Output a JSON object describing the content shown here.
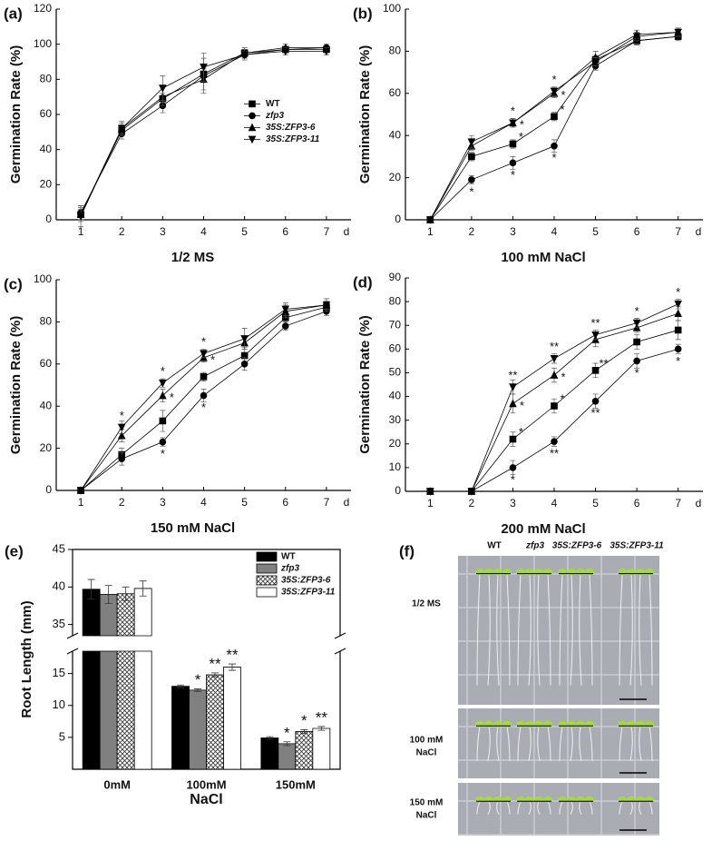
{
  "chart_data": [
    {
      "type": "line",
      "panel": "(a)",
      "title": "1/2 MS",
      "xlabel": "d",
      "ylabel": "Germination Rate (%)",
      "x": [
        1,
        2,
        3,
        4,
        5,
        6,
        7
      ],
      "xlim": [
        0.4,
        7.6
      ],
      "xticks": [
        1,
        2,
        3,
        4,
        5,
        6,
        7
      ],
      "ylim": [
        0,
        120
      ],
      "yticks": [
        0,
        20,
        40,
        60,
        80,
        100,
        120
      ],
      "legend": "center right",
      "series": [
        {
          "name": "WT",
          "marker": "square",
          "color": "#000000",
          "italic": false,
          "values": [
            3,
            51,
            69,
            83,
            95,
            97,
            97
          ],
          "errors": [
            3,
            3,
            3,
            4,
            2,
            1,
            1
          ]
        },
        {
          "name": "zfp3",
          "marker": "circle",
          "color": "#000000",
          "italic": true,
          "values": [
            4,
            49,
            65,
            82,
            94,
            97,
            98
          ],
          "errors": [
            4,
            3,
            4,
            10,
            2,
            1,
            1
          ]
        },
        {
          "name": "35S:ZFP3-6",
          "marker": "triangle-up",
          "color": "#000000",
          "italic": true,
          "values": [
            3,
            52,
            70,
            80,
            95,
            98,
            98
          ],
          "errors": [
            4,
            3,
            5,
            6,
            3,
            2,
            2
          ]
        },
        {
          "name": "35S:ZFP3-11",
          "marker": "triangle-down",
          "color": "#000000",
          "italic": true,
          "values": [
            2,
            52,
            75,
            87,
            94,
            96,
            96
          ],
          "errors": [
            6,
            4,
            7,
            8,
            3,
            2,
            2
          ]
        }
      ]
    },
    {
      "type": "line",
      "panel": "(b)",
      "title": "100 mM NaCl",
      "xlabel": "d",
      "ylabel": "Germination Rate (%)",
      "x": [
        1,
        2,
        3,
        4,
        5,
        6,
        7
      ],
      "xlim": [
        0.4,
        7.6
      ],
      "xticks": [
        1,
        2,
        3,
        4,
        5,
        6,
        7
      ],
      "ylim": [
        0,
        100
      ],
      "yticks": [
        0,
        20,
        40,
        60,
        80,
        100
      ],
      "series": [
        {
          "name": "WT",
          "marker": "square",
          "color": "#000000",
          "values": [
            0,
            30,
            36,
            49,
            76,
            85,
            87
          ],
          "errors": [
            0,
            2,
            2,
            2,
            2,
            2,
            2
          ],
          "annotations": [
            null,
            null,
            "*",
            "*",
            null,
            null,
            null
          ]
        },
        {
          "name": "zfp3",
          "marker": "circle",
          "color": "#000000",
          "values": [
            0,
            19,
            27,
            35,
            73,
            85,
            87
          ],
          "errors": [
            0,
            2,
            3,
            3,
            2,
            2,
            1
          ],
          "annotations": [
            null,
            "*",
            "*",
            "*",
            null,
            null,
            null
          ]
        },
        {
          "name": "35S:ZFP3-6",
          "marker": "triangle-up",
          "color": "#000000",
          "values": [
            0,
            35,
            46,
            60,
            77,
            88,
            89
          ],
          "errors": [
            0,
            2,
            2,
            2,
            3,
            2,
            2
          ],
          "annotations": [
            null,
            null,
            "*",
            "*",
            null,
            null,
            null
          ]
        },
        {
          "name": "35S:ZFP3-11",
          "marker": "triangle-down",
          "color": "#000000",
          "values": [
            0,
            37,
            46,
            61,
            75,
            87,
            89
          ],
          "errors": [
            0,
            3,
            2,
            2,
            2,
            2,
            2
          ],
          "annotations": [
            null,
            null,
            "*",
            "*",
            null,
            null,
            null
          ]
        }
      ]
    },
    {
      "type": "line",
      "panel": "(c)",
      "title": "150 mM NaCl",
      "xlabel": "d",
      "ylabel": "Germination Rate (%)",
      "x": [
        1,
        2,
        3,
        4,
        5,
        6,
        7
      ],
      "xlim": [
        0.4,
        7.6
      ],
      "xticks": [
        1,
        2,
        3,
        4,
        5,
        6,
        7
      ],
      "ylim": [
        0,
        100
      ],
      "yticks": [
        0,
        20,
        40,
        60,
        80,
        100
      ],
      "series": [
        {
          "name": "WT",
          "marker": "square",
          "color": "#000000",
          "values": [
            0,
            17,
            33,
            54,
            64,
            82,
            87
          ],
          "errors": [
            0,
            3,
            5,
            2,
            4,
            3,
            2
          ]
        },
        {
          "name": "zfp3",
          "marker": "circle",
          "color": "#000000",
          "values": [
            0,
            15,
            23,
            45,
            60,
            78,
            85
          ],
          "errors": [
            0,
            3,
            2,
            3,
            3,
            2,
            2
          ],
          "annotations": [
            null,
            null,
            "*",
            "*",
            null,
            null,
            null
          ]
        },
        {
          "name": "35S:ZFP3-6",
          "marker": "triangle-up",
          "color": "#000000",
          "values": [
            0,
            26,
            45,
            63,
            70,
            85,
            88
          ],
          "errors": [
            0,
            3,
            3,
            2,
            3,
            3,
            2
          ],
          "annotations": [
            null,
            null,
            "*",
            "*",
            null,
            null,
            null
          ]
        },
        {
          "name": "35S:ZFP3-11",
          "marker": "triangle-down",
          "color": "#000000",
          "values": [
            0,
            30,
            51,
            65,
            72,
            86,
            88
          ],
          "errors": [
            0,
            3,
            2,
            2,
            5,
            3,
            3
          ],
          "annotations": [
            null,
            "*",
            "*",
            "*",
            null,
            null,
            null
          ]
        }
      ]
    },
    {
      "type": "line",
      "panel": "(d)",
      "title": "200 mM NaCl",
      "xlabel": "d",
      "ylabel": "Germination Rate (%)",
      "x": [
        1,
        2,
        3,
        4,
        5,
        6,
        7
      ],
      "xlim": [
        0.4,
        7.6
      ],
      "xticks": [
        1,
        2,
        3,
        4,
        5,
        6,
        7
      ],
      "ylim": [
        0,
        90
      ],
      "yticks": [
        0,
        10,
        20,
        30,
        40,
        50,
        60,
        70,
        80,
        90
      ],
      "series": [
        {
          "name": "WT",
          "marker": "square",
          "color": "#000000",
          "values": [
            0,
            0,
            22,
            36,
            51,
            63,
            68
          ],
          "errors": [
            0,
            0,
            3,
            3,
            3,
            3,
            4
          ],
          "annotations": [
            null,
            null,
            "*",
            "*",
            "**",
            null,
            null
          ]
        },
        {
          "name": "zfp3",
          "marker": "circle",
          "color": "#000000",
          "values": [
            0,
            0,
            10,
            21,
            38,
            55,
            60
          ],
          "errors": [
            0,
            0,
            3,
            2,
            3,
            3,
            2
          ],
          "annotations": [
            null,
            null,
            "*",
            "**",
            "**",
            "*",
            "*"
          ]
        },
        {
          "name": "35S:ZFP3-6",
          "marker": "triangle-up",
          "color": "#000000",
          "values": [
            0,
            0,
            37,
            49,
            64,
            69,
            75
          ],
          "errors": [
            0,
            0,
            4,
            3,
            3,
            2,
            3
          ],
          "annotations": [
            null,
            null,
            "*",
            "*",
            null,
            null,
            null
          ]
        },
        {
          "name": "35S:ZFP3-11",
          "marker": "triangle-down",
          "color": "#000000",
          "values": [
            0,
            0,
            44,
            56,
            66,
            71,
            79
          ],
          "errors": [
            0,
            0,
            3,
            2,
            2,
            2,
            2
          ],
          "annotations": [
            null,
            null,
            "**",
            "**",
            "**",
            "*",
            "*"
          ]
        }
      ]
    },
    {
      "type": "bar",
      "panel": "(e)",
      "xlabel": "NaCl",
      "ylabel": "Root Length (mm)",
      "categories": [
        "0mM",
        "100mM",
        "150mM"
      ],
      "ylim": [
        0,
        45
      ],
      "axis_break": [
        18.5,
        33.5
      ],
      "yticks": [
        5,
        10,
        15,
        35,
        40,
        45
      ],
      "legend": "upper right",
      "series": [
        {
          "name": "WT",
          "color": "#000000",
          "pattern": "solid",
          "italic": false,
          "values": [
            39.7,
            13.0,
            4.9
          ],
          "errors": [
            1.3,
            0.2,
            0.2
          ]
        },
        {
          "name": "zfp3",
          "color": "#808080",
          "pattern": "solid",
          "italic": true,
          "values": [
            39.0,
            12.4,
            4.0
          ],
          "errors": [
            1.2,
            0.2,
            0.3
          ],
          "annotations": [
            null,
            "*",
            "*"
          ]
        },
        {
          "name": "35S:ZFP3-6",
          "color": "#ffffff",
          "pattern": "crosshatch",
          "italic": true,
          "values": [
            39.1,
            14.8,
            5.9
          ],
          "errors": [
            0.9,
            0.3,
            0.3
          ],
          "annotations": [
            null,
            "**",
            "*"
          ]
        },
        {
          "name": "35S:ZFP3-11",
          "color": "#ffffff",
          "pattern": "solid",
          "italic": true,
          "values": [
            39.8,
            16.0,
            6.4
          ],
          "errors": [
            1.0,
            0.5,
            0.3
          ],
          "annotations": [
            null,
            "**",
            "**"
          ]
        }
      ]
    }
  ],
  "photo": {
    "panel": "(f)",
    "columns": [
      "WT",
      "zfp3",
      "35S:ZFP3-6",
      "35S:ZFP3-11"
    ],
    "rows": [
      {
        "lines": [
          "1/2 MS"
        ]
      },
      {
        "lines": [
          "100 mM",
          "NaCl"
        ]
      },
      {
        "lines": [
          "150 mM",
          "NaCl"
        ]
      }
    ]
  }
}
